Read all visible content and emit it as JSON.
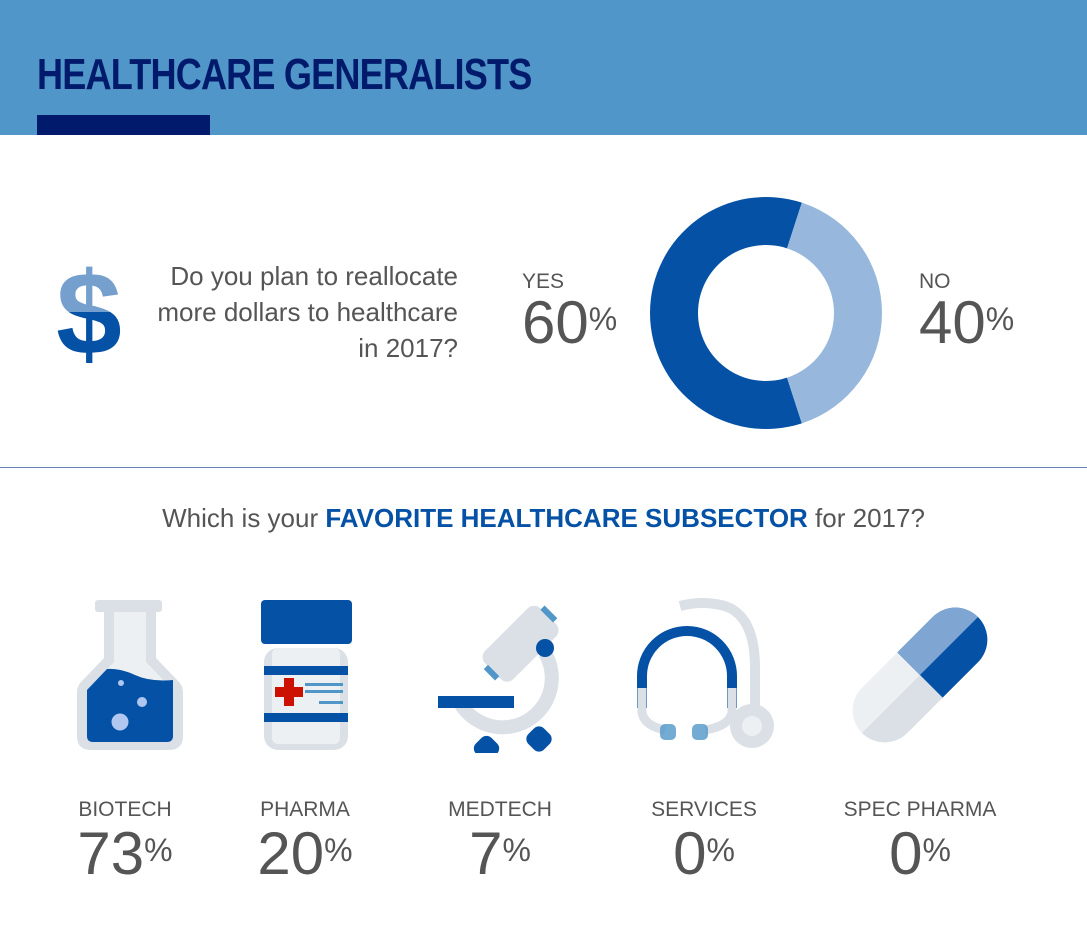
{
  "header": {
    "title": "HEALTHCARE GENERALISTS"
  },
  "question1": "Do you plan to reallocate more dollars to healthcare in 2017?",
  "question2": {
    "prefix": "Which is your ",
    "highlight": "FAVORITE HEALTHCARE SUBSECTOR",
    "suffix": " for 2017?"
  },
  "percent_sign": "%",
  "chart_data": [
    {
      "type": "pie",
      "variant": "donut",
      "title": "Do you plan to reallocate more dollars to healthcare in 2017?",
      "categories": [
        "YES",
        "NO"
      ],
      "values": [
        60,
        40
      ],
      "colors": [
        "#0451a5",
        "#97b8dc"
      ],
      "labels": [
        {
          "name": "YES",
          "value": "60"
        },
        {
          "name": "NO",
          "value": "40"
        }
      ]
    },
    {
      "type": "table",
      "title": "Which is your FAVORITE HEALTHCARE SUBSECTOR for 2017?",
      "categories": [
        "BIOTECH",
        "PHARMA",
        "MEDTECH",
        "SERVICES",
        "SPEC PHARMA"
      ],
      "values": [
        73,
        20,
        7,
        0,
        0
      ],
      "display": [
        "73",
        "20",
        "7",
        "0",
        "0"
      ]
    }
  ],
  "icons": [
    "dollar-icon",
    "flask-icon",
    "pill-bottle-icon",
    "microscope-icon",
    "stethoscope-icon",
    "capsule-icon"
  ],
  "colors": {
    "header": "#5096c8",
    "navy": "#021a6b",
    "blue": "#0451a5",
    "light_blue": "#97b8dc",
    "gray": "#dae0e6"
  }
}
